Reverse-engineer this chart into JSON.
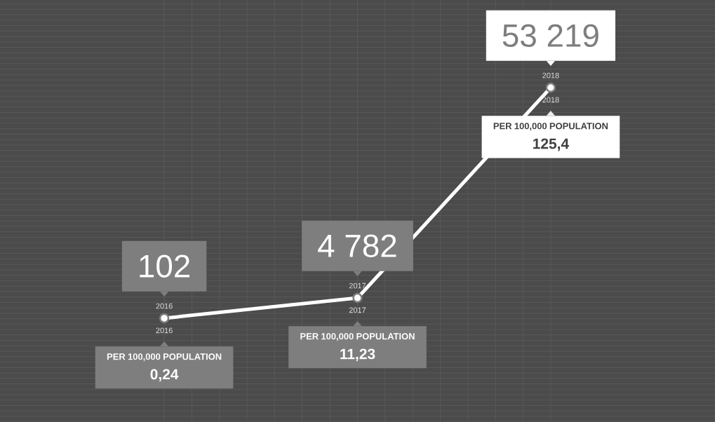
{
  "chart_data": {
    "type": "line",
    "categories": [
      "2016",
      "2017",
      "2018"
    ],
    "series": [
      {
        "color": "#ffffff",
        "values": [
          102,
          4782,
          53219
        ],
        "value_labels": [
          "102",
          "4 782",
          "53 219"
        ]
      }
    ],
    "marker": "circle",
    "grid": true,
    "annotations": [
      "PER 100,000 POPULATION",
      "0,24",
      "PER 100,000 POPULATION",
      "11,23",
      "PER 100,000 POPULATION",
      "125,4"
    ]
  }
}
